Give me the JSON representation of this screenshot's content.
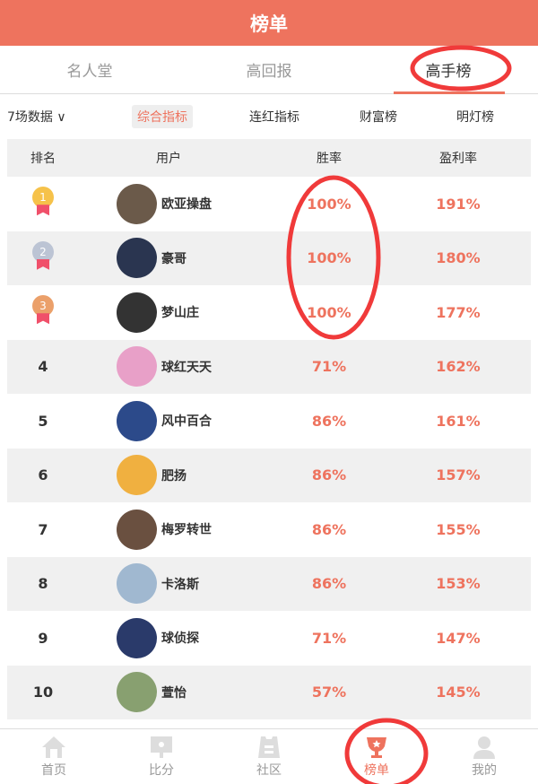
{
  "header": {
    "title": "榜单"
  },
  "tabs": [
    {
      "label": "名人堂"
    },
    {
      "label": "高回报"
    },
    {
      "label": "高手榜",
      "active": true
    }
  ],
  "filters": {
    "range": "7场数据",
    "items": [
      "综合指标",
      "连红指标",
      "财富榜",
      "明灯榜"
    ],
    "selected": "综合指标"
  },
  "table": {
    "headers": [
      "排名",
      "用户",
      "胜率",
      "盈利率"
    ],
    "rows": [
      {
        "rank": "1",
        "name": "欧亚操盘",
        "win": "100%",
        "profit": "191%",
        "medal": "gold",
        "avatar": "#6b5a4a"
      },
      {
        "rank": "2",
        "name": "豪哥",
        "win": "100%",
        "profit": "180%",
        "medal": "silver",
        "avatar": "#2a3550"
      },
      {
        "rank": "3",
        "name": "梦山庄",
        "win": "100%",
        "profit": "177%",
        "medal": "bronze",
        "avatar": "#333"
      },
      {
        "rank": "4",
        "name": "球红天天",
        "win": "71%",
        "profit": "162%",
        "avatar": "#e8a0c8"
      },
      {
        "rank": "5",
        "name": "风中百合",
        "win": "86%",
        "profit": "161%",
        "avatar": "#2c4a8a"
      },
      {
        "rank": "6",
        "name": "肥扬",
        "win": "86%",
        "profit": "157%",
        "avatar": "#f0b040"
      },
      {
        "rank": "7",
        "name": "梅罗转世",
        "win": "86%",
        "profit": "155%",
        "avatar": "#6a5040"
      },
      {
        "rank": "8",
        "name": "卡洛斯",
        "win": "86%",
        "profit": "153%",
        "avatar": "#a0b8d0"
      },
      {
        "rank": "9",
        "name": "球侦探",
        "win": "71%",
        "profit": "147%",
        "avatar": "#2a3a6a"
      },
      {
        "rank": "10",
        "name": "萱怡",
        "win": "57%",
        "profit": "145%",
        "avatar": "#88a070"
      }
    ]
  },
  "bottom_nav": [
    {
      "label": "首页",
      "icon": "home-icon"
    },
    {
      "label": "比分",
      "icon": "score-icon"
    },
    {
      "label": "社区",
      "icon": "community-icon"
    },
    {
      "label": "榜单",
      "icon": "trophy-icon",
      "active": true
    },
    {
      "label": "我的",
      "icon": "user-icon"
    }
  ],
  "colors": {
    "accent": "#ee735e",
    "annotation": "#f03a3a"
  }
}
